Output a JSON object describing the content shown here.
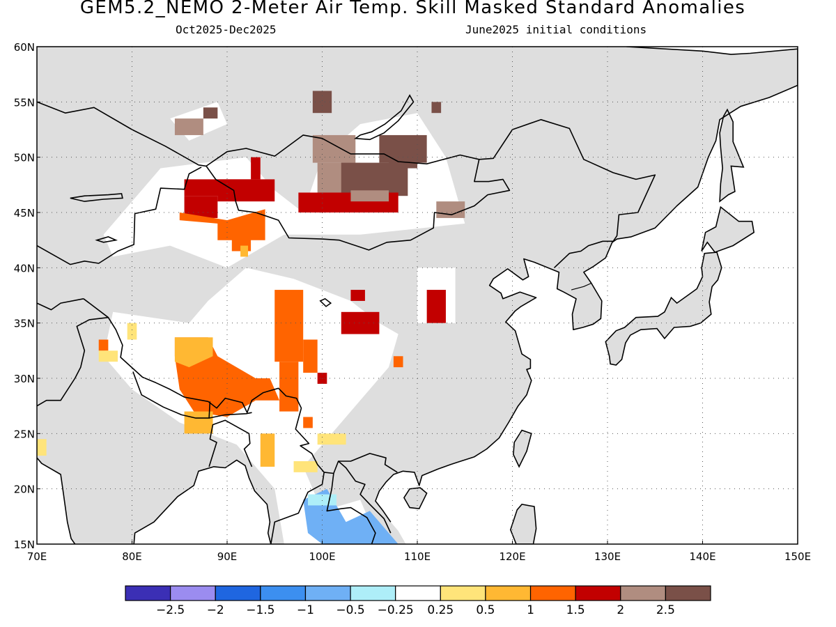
{
  "title": "GEM5.2_NEMO 2-Meter Air Temp. Skill Masked Standard Anomalies",
  "subtitle_left": "Oct2025-Dec2025",
  "subtitle_right": "June2025 initial conditions",
  "map": {
    "lon_range": [
      70,
      150
    ],
    "lat_range": [
      15,
      60
    ],
    "lon_ticks": [
      "70E",
      "80E",
      "90E",
      "100E",
      "110E",
      "120E",
      "130E",
      "140E",
      "150E"
    ],
    "lat_ticks": [
      "15N",
      "20N",
      "25N",
      "30N",
      "35N",
      "40N",
      "45N",
      "50N",
      "55N",
      "60N"
    ],
    "land_color": "#dedede",
    "ocean_color": "#ffffff",
    "gridlines": "dotted"
  },
  "colorbar": {
    "colors": [
      "#3b2fb5",
      "#9b8cf0",
      "#1f66e0",
      "#3c8ff0",
      "#6fb0f5",
      "#aeeef8",
      "#ffffff",
      "#ffe47a",
      "#ffb833",
      "#ff6400",
      "#c20000",
      "#b08d80",
      "#7a5048"
    ],
    "labels": [
      "-2.5",
      "-2",
      "-1.5",
      "-1",
      "-0.5",
      "-0.25",
      "0.25",
      "0.5",
      "1",
      "1.5",
      "2",
      "2.5"
    ]
  }
}
